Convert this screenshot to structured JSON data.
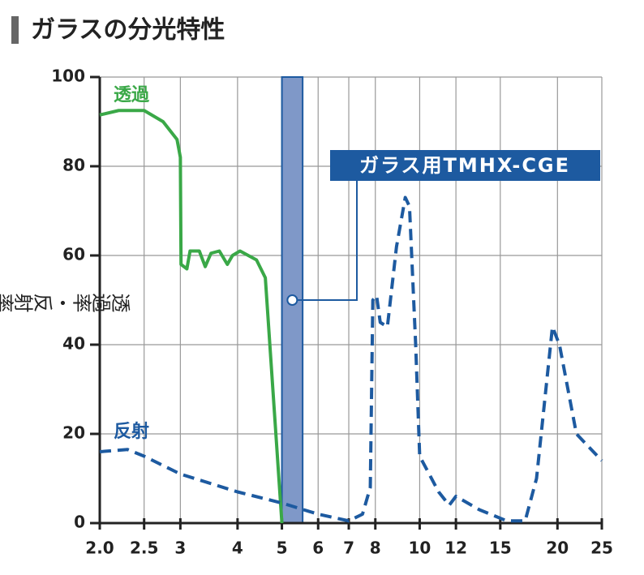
{
  "chart_data": {
    "type": "line",
    "title": "ガラスの分光特性",
    "y_label": "透過率・反射率（%）",
    "xscale": "log",
    "xlim": [
      2,
      25
    ],
    "ylim": [
      0,
      100
    ],
    "xticks": [
      {
        "value": 2,
        "label": "2.0"
      },
      2.5,
      3,
      4,
      5,
      6,
      7,
      8,
      10,
      12,
      15,
      20,
      25
    ],
    "yticks": [
      0,
      20,
      40,
      60,
      80,
      100
    ],
    "grid": true,
    "series": [
      {
        "name": "透過",
        "color": "#3aa847",
        "style": "solid",
        "x": [
          2.0,
          2.2,
          2.5,
          2.75,
          2.95,
          3.0,
          3.01,
          3.1,
          3.15,
          3.3,
          3.4,
          3.5,
          3.65,
          3.8,
          3.9,
          4.05,
          4.4,
          4.6,
          5.0
        ],
        "values": [
          91.5,
          92.5,
          92.5,
          90,
          86,
          82,
          58,
          57,
          61,
          61,
          57.5,
          60.5,
          61,
          58,
          60,
          61,
          59,
          55,
          0
        ]
      },
      {
        "name": "反射",
        "color": "#1d5aa0",
        "style": "dashed",
        "x": [
          2.0,
          2.3,
          2.5,
          3,
          4,
          5,
          6,
          7,
          7.5,
          7.8,
          7.9,
          8.05,
          8.2,
          8.5,
          8.9,
          9.3,
          9.5,
          9.8,
          10,
          11,
          11.6,
          12,
          13.5,
          15.5,
          17,
          18,
          19.5,
          20.2,
          22,
          25
        ],
        "values": [
          16,
          16.5,
          15,
          11,
          7,
          4.5,
          2,
          0.5,
          2,
          8,
          50,
          51,
          45,
          44,
          62,
          73,
          71,
          40,
          15,
          7,
          4,
          6,
          3,
          0.5,
          0.5,
          10,
          44,
          40,
          20,
          14
        ]
      }
    ],
    "highlight": {
      "label": "ガラス用TMHX-CGE",
      "x": [
        5,
        5.55
      ],
      "color": "#7f98c8"
    }
  }
}
